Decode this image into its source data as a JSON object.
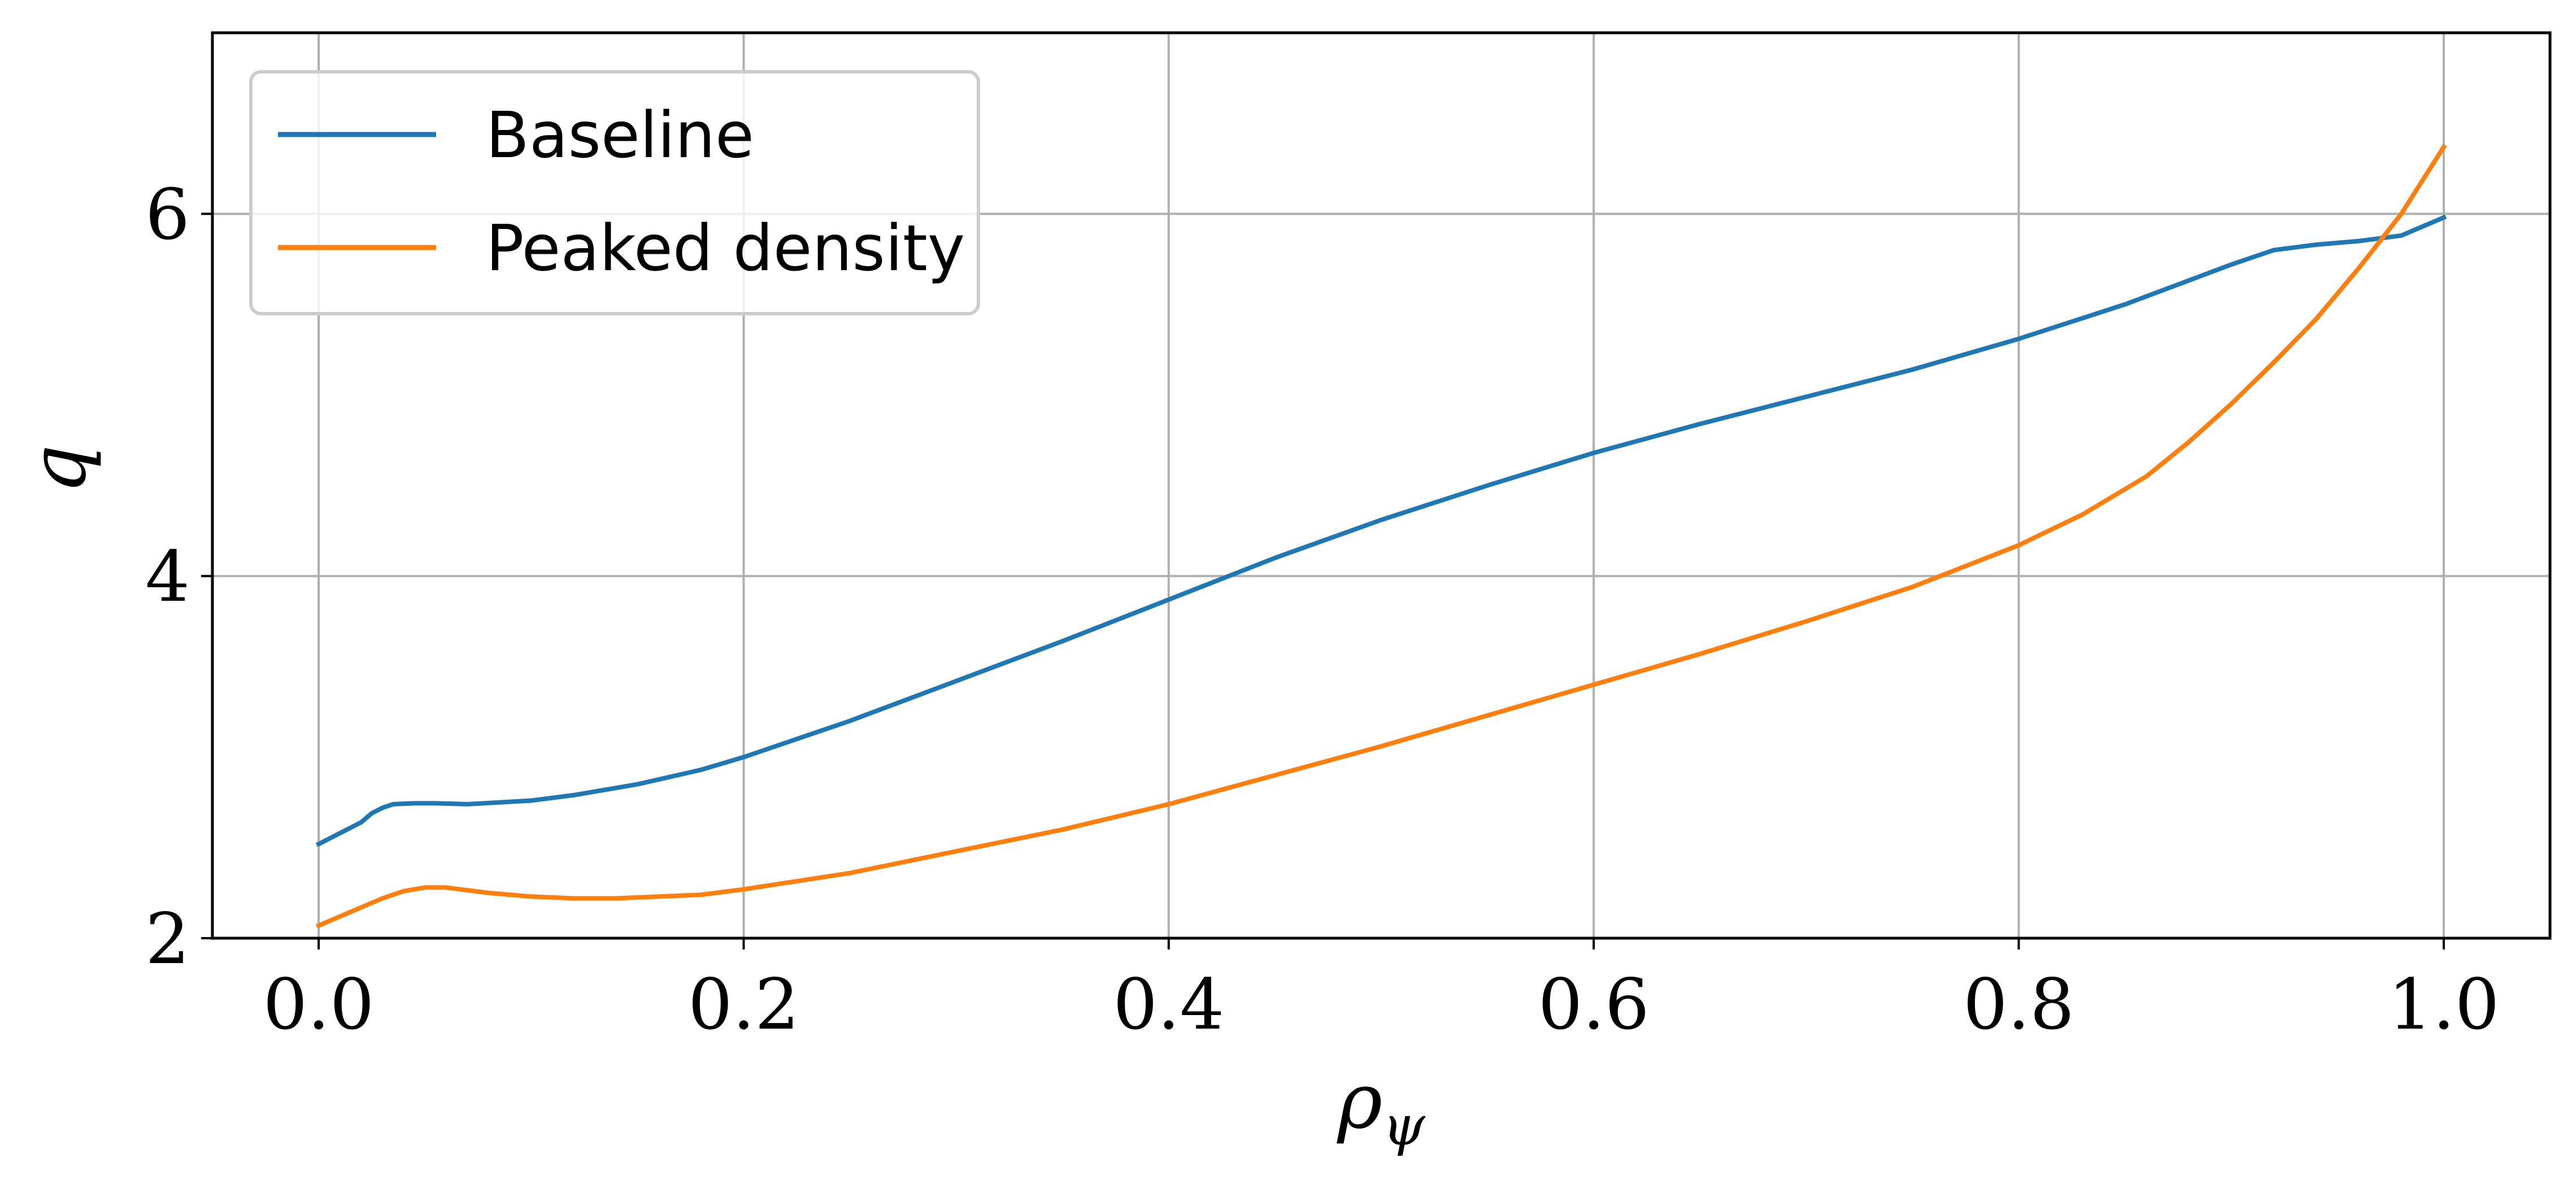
{
  "chart_data": {
    "type": "line",
    "title": "",
    "xlabel": "ρ",
    "xlabel_subscript": "ψ",
    "ylabel": "q",
    "xlim": [
      -0.05,
      1.05
    ],
    "ylim": [
      2,
      7
    ],
    "xticks": [
      0.0,
      0.2,
      0.4,
      0.6,
      0.8,
      1.0
    ],
    "xtick_labels": [
      "0.0",
      "0.2",
      "0.4",
      "0.6",
      "0.8",
      "1.0"
    ],
    "yticks": [
      2,
      4,
      6
    ],
    "ytick_labels": [
      "2",
      "4",
      "6"
    ],
    "grid": true,
    "legend_position": "top-left",
    "series": [
      {
        "name": "Baseline",
        "color": "#1f77b4",
        "x": [
          0.0,
          0.01,
          0.02,
          0.025,
          0.03,
          0.035,
          0.045,
          0.055,
          0.07,
          0.085,
          0.1,
          0.12,
          0.15,
          0.18,
          0.2,
          0.25,
          0.3,
          0.35,
          0.4,
          0.45,
          0.5,
          0.55,
          0.6,
          0.65,
          0.7,
          0.75,
          0.8,
          0.85,
          0.9,
          0.92,
          0.94,
          0.96,
          0.98,
          1.0
        ],
        "y": [
          2.52,
          2.58,
          2.64,
          2.69,
          2.72,
          2.74,
          2.745,
          2.745,
          2.74,
          2.75,
          2.76,
          2.79,
          2.85,
          2.93,
          3.0,
          3.2,
          3.42,
          3.64,
          3.87,
          4.1,
          4.31,
          4.5,
          4.68,
          4.84,
          4.99,
          5.14,
          5.31,
          5.5,
          5.72,
          5.8,
          5.83,
          5.85,
          5.88,
          5.98
        ]
      },
      {
        "name": "Peaked density",
        "color": "#ff7f0e",
        "x": [
          0.0,
          0.01,
          0.02,
          0.03,
          0.04,
          0.05,
          0.06,
          0.08,
          0.1,
          0.12,
          0.14,
          0.16,
          0.18,
          0.2,
          0.25,
          0.3,
          0.35,
          0.4,
          0.45,
          0.5,
          0.55,
          0.6,
          0.65,
          0.7,
          0.75,
          0.8,
          0.83,
          0.86,
          0.88,
          0.9,
          0.92,
          0.94,
          0.96,
          0.98,
          1.0
        ],
        "y": [
          2.07,
          2.12,
          2.17,
          2.22,
          2.26,
          2.28,
          2.28,
          2.25,
          2.23,
          2.22,
          2.22,
          2.23,
          2.24,
          2.27,
          2.36,
          2.48,
          2.6,
          2.74,
          2.9,
          3.06,
          3.23,
          3.4,
          3.57,
          3.75,
          3.94,
          4.17,
          4.34,
          4.55,
          4.74,
          4.95,
          5.18,
          5.42,
          5.7,
          6.0,
          6.37
        ]
      }
    ]
  }
}
